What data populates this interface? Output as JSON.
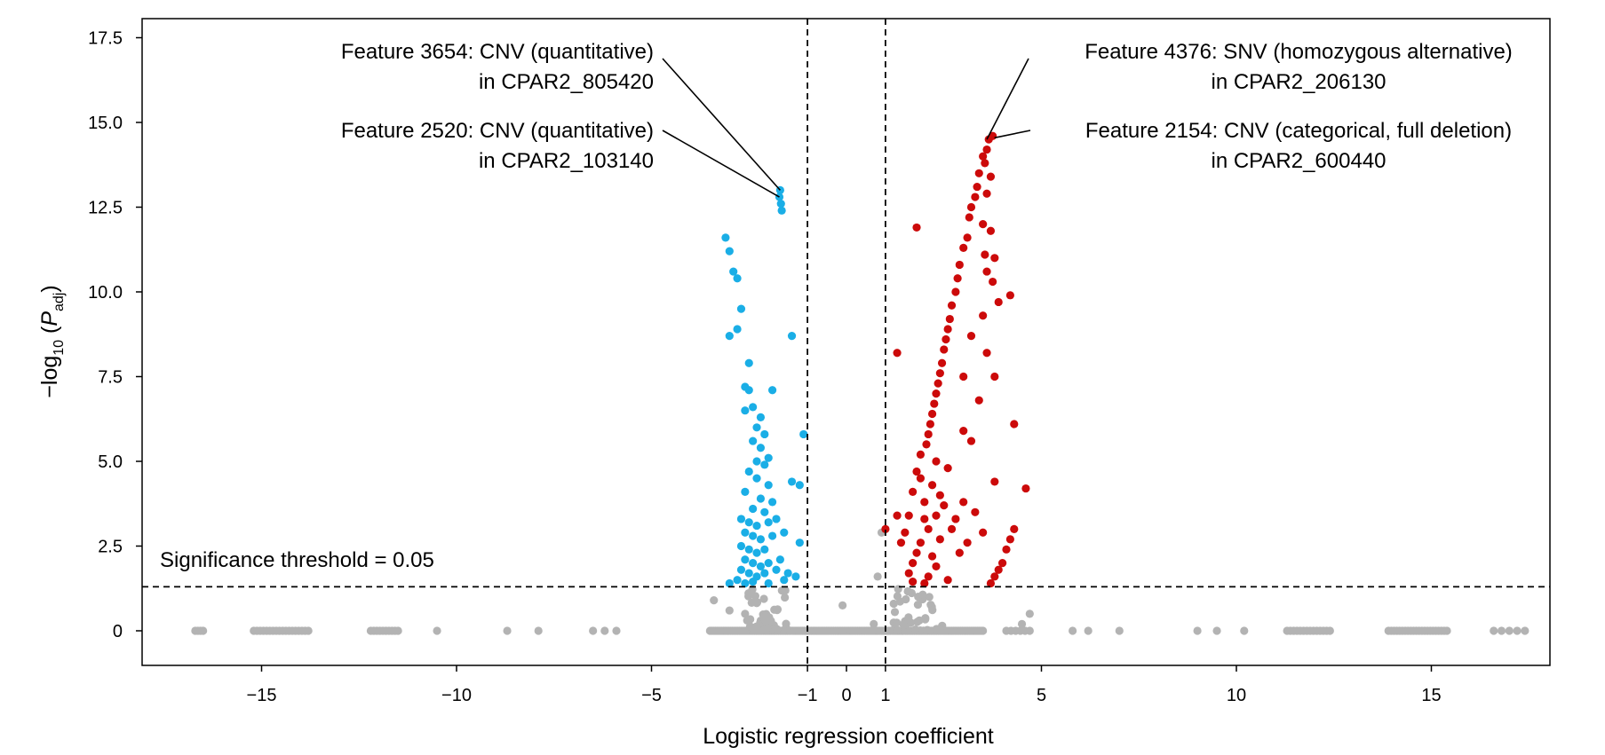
{
  "chart_data": {
    "type": "scatter",
    "title": "",
    "xlabel": "Logistic regression coefficient",
    "ylabel": {
      "prefix": "−log",
      "sub": "10",
      "mid": " (",
      "var": "P",
      "var_sub": "adj",
      "suffix": ")"
    },
    "xlim": [
      -18,
      18
    ],
    "ylim": [
      -1,
      17.5
    ],
    "x_ticks": [
      -15,
      -10,
      -5,
      -1,
      0,
      1,
      5,
      10,
      15
    ],
    "x_tick_labels": [
      "−15",
      "−10",
      "−5",
      "−1",
      "0",
      "1",
      "5",
      "10",
      "15"
    ],
    "y_ticks": [
      0,
      2.5,
      5.0,
      7.5,
      10.0,
      12.5,
      15.0,
      17.5
    ],
    "y_tick_labels": [
      "0",
      "2.5",
      "5.0",
      "7.5",
      "10.0",
      "12.5",
      "15.0",
      "17.5"
    ],
    "grid": false,
    "legend": "none",
    "colors": {
      "negative_significant": "#1aaee6",
      "positive_significant": "#cc0a0a",
      "not_significant": "#b3b3b3",
      "line": "#000000"
    },
    "thresholds": {
      "x_vertical": [
        -1,
        1
      ],
      "y_horizontal": 1.3,
      "label": "Significance threshold = 0.05"
    },
    "series": [
      {
        "group": "negative_significant",
        "points": [
          [
            -1.7,
            13.0
          ],
          [
            -1.72,
            12.8
          ],
          [
            -1.68,
            12.6
          ],
          [
            -1.66,
            12.4
          ],
          [
            -3.1,
            11.6
          ],
          [
            -3.0,
            11.2
          ],
          [
            -2.9,
            10.6
          ],
          [
            -2.8,
            10.4
          ],
          [
            -2.7,
            9.5
          ],
          [
            -2.8,
            8.9
          ],
          [
            -3.0,
            8.7
          ],
          [
            -1.4,
            8.7
          ],
          [
            -2.5,
            7.9
          ],
          [
            -2.6,
            7.2
          ],
          [
            -2.5,
            7.1
          ],
          [
            -1.9,
            7.1
          ],
          [
            -2.6,
            6.5
          ],
          [
            -2.4,
            6.6
          ],
          [
            -2.2,
            6.3
          ],
          [
            -2.3,
            6.0
          ],
          [
            -2.1,
            5.8
          ],
          [
            -1.1,
            5.8
          ],
          [
            -2.4,
            5.6
          ],
          [
            -2.2,
            5.4
          ],
          [
            -2.0,
            5.1
          ],
          [
            -2.3,
            5.0
          ],
          [
            -2.1,
            4.9
          ],
          [
            -2.5,
            4.7
          ],
          [
            -2.3,
            4.5
          ],
          [
            -2.0,
            4.3
          ],
          [
            -1.4,
            4.4
          ],
          [
            -1.2,
            4.3
          ],
          [
            -2.6,
            4.1
          ],
          [
            -2.2,
            3.9
          ],
          [
            -1.9,
            3.8
          ],
          [
            -2.4,
            3.6
          ],
          [
            -2.1,
            3.5
          ],
          [
            -2.7,
            3.3
          ],
          [
            -2.5,
            3.2
          ],
          [
            -2.3,
            3.1
          ],
          [
            -2.0,
            3.2
          ],
          [
            -1.8,
            3.3
          ],
          [
            -2.6,
            2.9
          ],
          [
            -2.4,
            2.8
          ],
          [
            -2.2,
            2.7
          ],
          [
            -1.9,
            2.8
          ],
          [
            -1.6,
            2.9
          ],
          [
            -2.7,
            2.5
          ],
          [
            -2.5,
            2.4
          ],
          [
            -2.3,
            2.3
          ],
          [
            -2.1,
            2.4
          ],
          [
            -1.2,
            2.6
          ],
          [
            -2.6,
            2.1
          ],
          [
            -2.4,
            2.0
          ],
          [
            -2.2,
            1.9
          ],
          [
            -2.0,
            2.0
          ],
          [
            -1.7,
            2.1
          ],
          [
            -2.7,
            1.8
          ],
          [
            -2.5,
            1.7
          ],
          [
            -2.3,
            1.6
          ],
          [
            -2.1,
            1.7
          ],
          [
            -1.8,
            1.8
          ],
          [
            -1.5,
            1.7
          ],
          [
            -1.3,
            1.6
          ],
          [
            -2.8,
            1.5
          ],
          [
            -2.6,
            1.4
          ],
          [
            -2.4,
            1.45
          ],
          [
            -2.0,
            1.4
          ],
          [
            -1.6,
            1.5
          ],
          [
            -3.0,
            1.4
          ]
        ]
      },
      {
        "group": "positive_significant",
        "points": [
          [
            3.75,
            14.6
          ],
          [
            3.65,
            14.5
          ],
          [
            3.6,
            14.2
          ],
          [
            3.5,
            14.0
          ],
          [
            3.55,
            13.8
          ],
          [
            3.4,
            13.5
          ],
          [
            3.7,
            13.4
          ],
          [
            3.35,
            13.1
          ],
          [
            3.3,
            12.8
          ],
          [
            3.6,
            12.9
          ],
          [
            3.2,
            12.5
          ],
          [
            3.15,
            12.2
          ],
          [
            3.5,
            12.0
          ],
          [
            3.7,
            11.8
          ],
          [
            1.8,
            11.9
          ],
          [
            3.1,
            11.6
          ],
          [
            3.0,
            11.3
          ],
          [
            3.55,
            11.1
          ],
          [
            3.8,
            11.0
          ],
          [
            2.9,
            10.8
          ],
          [
            3.6,
            10.6
          ],
          [
            2.85,
            10.4
          ],
          [
            3.75,
            10.3
          ],
          [
            2.8,
            10.0
          ],
          [
            4.2,
            9.9
          ],
          [
            2.7,
            9.6
          ],
          [
            3.9,
            9.7
          ],
          [
            2.65,
            9.2
          ],
          [
            3.5,
            9.3
          ],
          [
            2.6,
            8.9
          ],
          [
            2.55,
            8.6
          ],
          [
            3.2,
            8.7
          ],
          [
            1.3,
            8.2
          ],
          [
            2.5,
            8.3
          ],
          [
            3.6,
            8.2
          ],
          [
            2.45,
            7.9
          ],
          [
            2.4,
            7.6
          ],
          [
            3.0,
            7.5
          ],
          [
            2.35,
            7.3
          ],
          [
            3.8,
            7.5
          ],
          [
            2.3,
            7.0
          ],
          [
            2.25,
            6.7
          ],
          [
            3.4,
            6.8
          ],
          [
            2.2,
            6.4
          ],
          [
            2.15,
            6.1
          ],
          [
            4.3,
            6.1
          ],
          [
            2.1,
            5.8
          ],
          [
            3.0,
            5.9
          ],
          [
            2.05,
            5.5
          ],
          [
            3.2,
            5.6
          ],
          [
            1.9,
            5.2
          ],
          [
            2.3,
            5.0
          ],
          [
            1.8,
            4.7
          ],
          [
            2.6,
            4.8
          ],
          [
            1.9,
            4.5
          ],
          [
            2.2,
            4.3
          ],
          [
            3.8,
            4.4
          ],
          [
            1.7,
            4.1
          ],
          [
            2.4,
            4.0
          ],
          [
            4.6,
            4.2
          ],
          [
            2.0,
            3.8
          ],
          [
            2.5,
            3.7
          ],
          [
            3.0,
            3.8
          ],
          [
            1.3,
            3.4
          ],
          [
            1.6,
            3.4
          ],
          [
            2.0,
            3.3
          ],
          [
            2.3,
            3.4
          ],
          [
            2.8,
            3.3
          ],
          [
            3.3,
            3.5
          ],
          [
            1.0,
            3.0
          ],
          [
            1.5,
            2.9
          ],
          [
            2.1,
            3.0
          ],
          [
            2.7,
            3.0
          ],
          [
            3.5,
            2.9
          ],
          [
            4.3,
            3.0
          ],
          [
            1.4,
            2.6
          ],
          [
            1.9,
            2.6
          ],
          [
            2.4,
            2.7
          ],
          [
            3.1,
            2.6
          ],
          [
            4.2,
            2.7
          ],
          [
            1.8,
            2.3
          ],
          [
            2.2,
            2.2
          ],
          [
            2.9,
            2.3
          ],
          [
            4.1,
            2.4
          ],
          [
            1.7,
            2.0
          ],
          [
            2.3,
            1.9
          ],
          [
            4.0,
            2.0
          ],
          [
            1.6,
            1.7
          ],
          [
            2.1,
            1.6
          ],
          [
            3.9,
            1.8
          ],
          [
            1.7,
            1.45
          ],
          [
            2.0,
            1.4
          ],
          [
            2.6,
            1.5
          ],
          [
            3.7,
            1.4
          ],
          [
            3.8,
            1.6
          ]
        ]
      }
    ],
    "not_significant": {
      "clusters": [
        [
          -16.7,
          -16.5,
          4
        ],
        [
          -15.2,
          -13.8,
          18
        ],
        [
          -12.2,
          -11.5,
          10
        ],
        [
          -3.5,
          3.5,
          160
        ],
        [
          4.1,
          4.7,
          6
        ],
        [
          11.3,
          12.4,
          14
        ],
        [
          13.9,
          15.4,
          22
        ],
        [
          16.6,
          17.4,
          5
        ]
      ],
      "singles": [
        [
          -10.5,
          0
        ],
        [
          -8.7,
          0
        ],
        [
          -7.9,
          0
        ],
        [
          -6.5,
          0
        ],
        [
          -6.2,
          0
        ],
        [
          -5.9,
          0
        ],
        [
          5.8,
          0
        ],
        [
          6.2,
          0
        ],
        [
          7.0,
          0
        ],
        [
          9.0,
          0
        ],
        [
          9.5,
          0
        ],
        [
          10.2,
          0
        ],
        [
          -3.4,
          0.9
        ],
        [
          -3.0,
          0.6
        ],
        [
          -2.6,
          0.5
        ],
        [
          -2.2,
          0.3
        ],
        [
          -0.1,
          0.75
        ],
        [
          0.7,
          0.2
        ],
        [
          0.8,
          1.6
        ],
        [
          0.9,
          2.9
        ],
        [
          4.7,
          0.5
        ],
        [
          4.5,
          0.2
        ]
      ],
      "near_threshold_band": [
        [
          -2.6,
          -1.5
        ],
        [
          1.2,
          2.6
        ]
      ]
    },
    "annotations": [
      {
        "lines": [
          "Feature 3654: CNV (quantitative)",
          "in CPAR2_805420"
        ],
        "align": "right",
        "point": [
          -1.7,
          13.0
        ]
      },
      {
        "lines": [
          "Feature 2520: CNV (quantitative)",
          "in CPAR2_103140"
        ],
        "align": "right",
        "point": [
          -1.72,
          12.8
        ]
      },
      {
        "lines": [
          "Feature 4376: SNV (homozygous alternative)",
          "in CPAR2_206130"
        ],
        "align": "center",
        "point": [
          3.6,
          14.5
        ]
      },
      {
        "lines": [
          "Feature 2154: CNV (categorical, full deletion)",
          "in CPAR2_600440"
        ],
        "align": "center",
        "point": [
          3.75,
          14.6
        ]
      }
    ]
  }
}
